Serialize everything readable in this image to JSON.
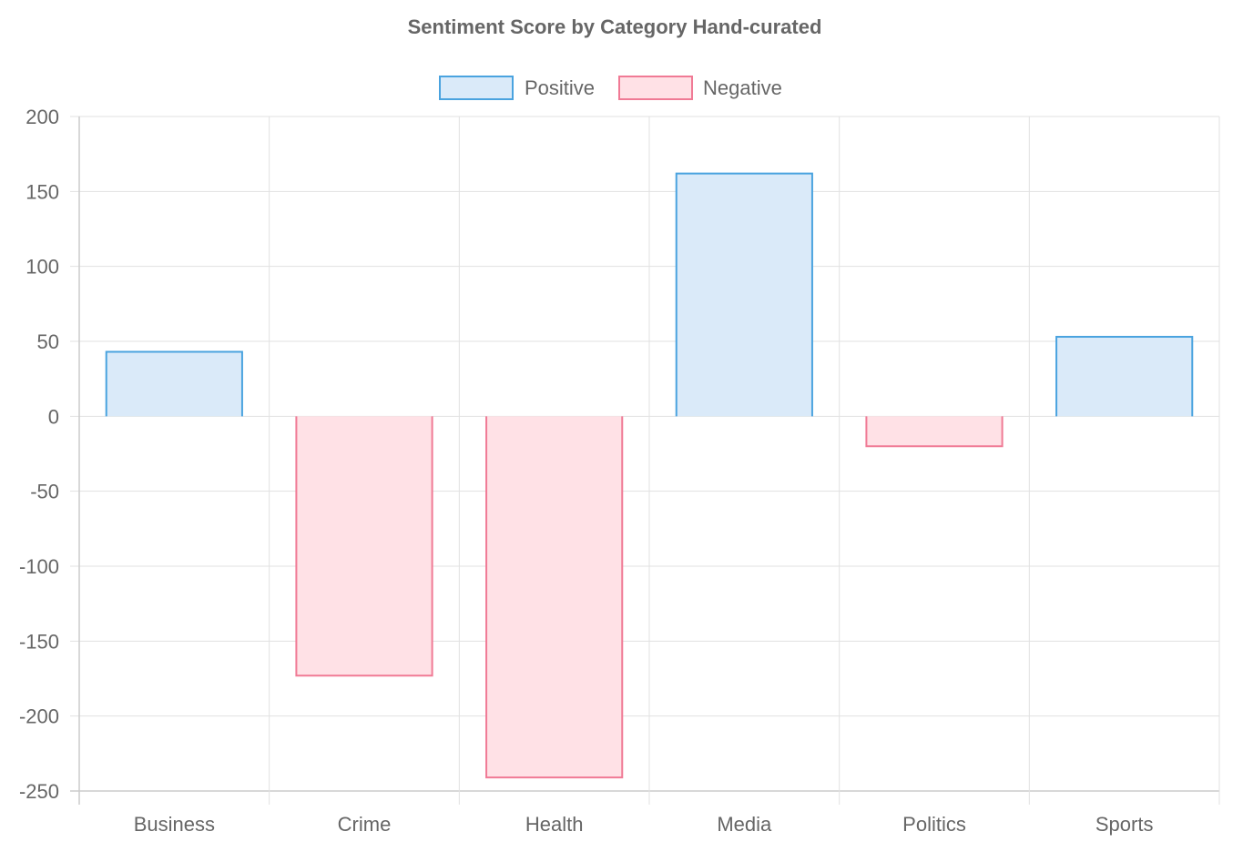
{
  "chart_data": {
    "type": "bar",
    "title": "Sentiment Score by Category Hand-curated",
    "categories": [
      "Business",
      "Crime",
      "Health",
      "Media",
      "Politics",
      "Sports"
    ],
    "series": [
      {
        "name": "Positive",
        "values": [
          43,
          null,
          null,
          162,
          null,
          53
        ],
        "fill_color": "#daeaf9",
        "border_color": "#4aa3df"
      },
      {
        "name": "Negative",
        "values": [
          null,
          -173,
          -241,
          null,
          -20,
          null
        ],
        "fill_color": "#ffe1e6",
        "border_color": "#f07a95"
      }
    ],
    "xlabel": "",
    "ylabel": "",
    "ylim": [
      -250,
      200
    ],
    "y_ticks": [
      200,
      150,
      100,
      50,
      0,
      -50,
      -100,
      -150,
      -200,
      -250
    ],
    "grid": true,
    "legend_position": "top-center"
  }
}
